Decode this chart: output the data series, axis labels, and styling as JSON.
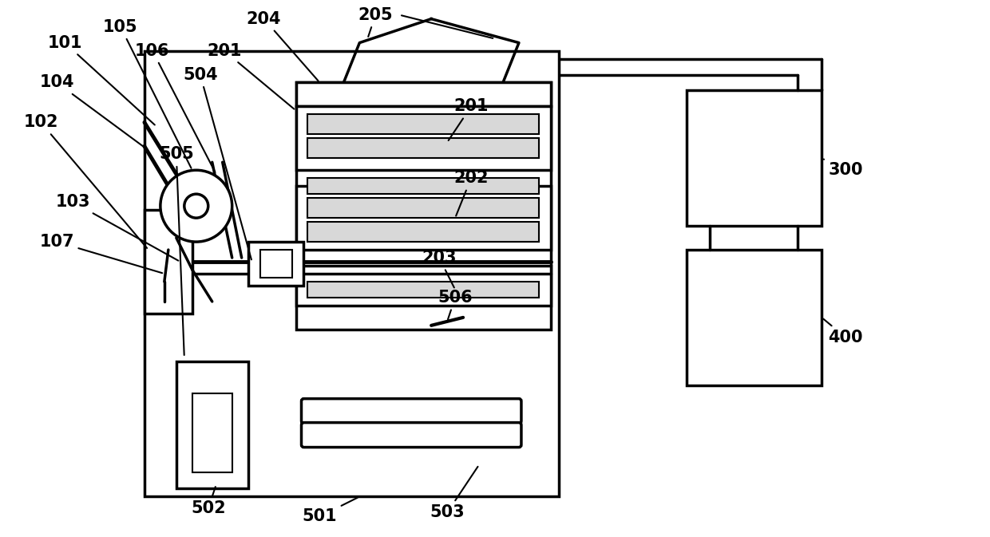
{
  "bg_color": "#ffffff",
  "lc": "#000000",
  "lw": 2.5,
  "tlw": 1.5,
  "fs": 15,
  "fw": "bold",
  "fig_w": 12.4,
  "fig_h": 6.73
}
